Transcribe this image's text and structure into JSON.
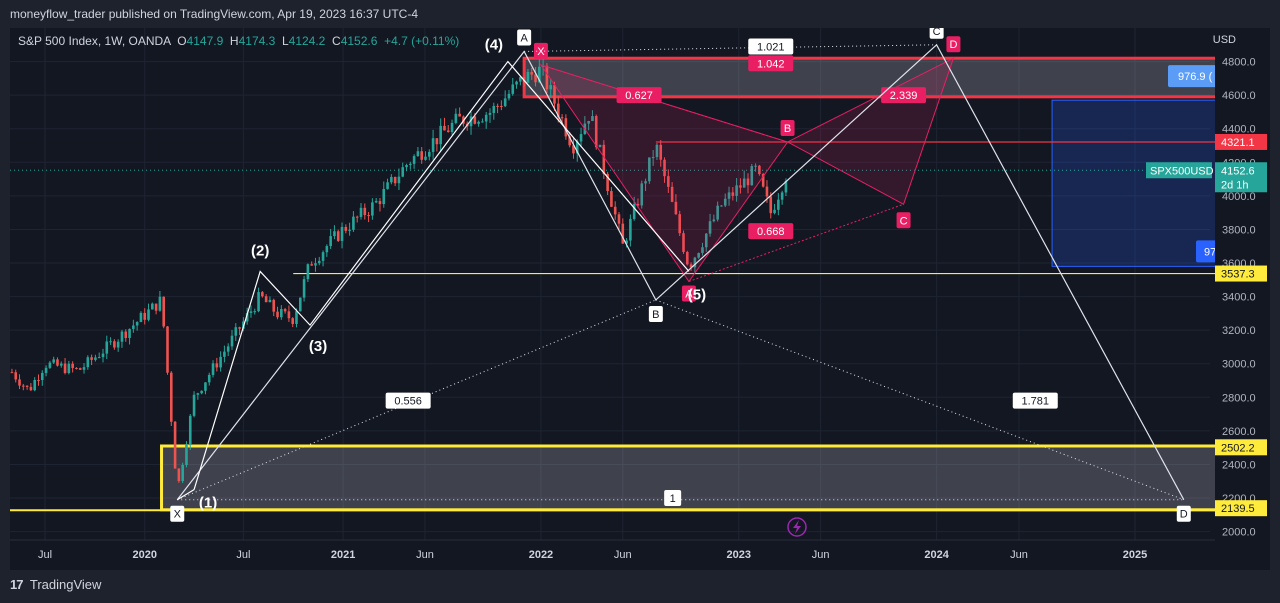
{
  "header": {
    "publish_line": "moneyflow_trader published on TradingView.com, Apr 19, 2023 16:37 UTC-4"
  },
  "legend": {
    "symbol": "S&P 500 Index, 1W, OANDA",
    "o_label": "O",
    "o_value": "4147.9",
    "h_label": "H",
    "h_value": "4174.3",
    "l_label": "L",
    "l_value": "4124.2",
    "c_label": "C",
    "c_value": "4152.6",
    "change": "+4.7 (+0.11%)"
  },
  "price_scale": {
    "currency": "USD"
  },
  "footer": {
    "brand": "TradingView",
    "logo": "17"
  },
  "colors": {
    "background": "#131722",
    "up": "#26a69a",
    "down": "#ef5350",
    "pattern": "#e91e63",
    "zone": "#ffeb3b",
    "projection": "#2962ff"
  },
  "chart_data": {
    "type": "candlestick",
    "title": "",
    "timeframe": "1W",
    "grid": true,
    "x_ticks": [
      "Jul",
      "2020",
      "Jul",
      "2021",
      "Jun",
      "2022",
      "Jun",
      "2023",
      "Jun",
      "2024",
      "Jun",
      "2025"
    ],
    "x_tick_dates": [
      "2019-07",
      "2020-01",
      "2020-07",
      "2021-01",
      "2021-06",
      "2022-01",
      "2022-06",
      "2023-01",
      "2023-06",
      "2024-01",
      "2024-06",
      "2025-01"
    ],
    "y_ticks": [
      2000,
      2200,
      2400,
      2600,
      2800,
      3000,
      3200,
      3400,
      3600,
      3800,
      4000,
      4200,
      4400,
      4600,
      4800
    ],
    "y_range": [
      1950,
      5000
    ],
    "price_path": [
      [
        "2019-05",
        2950
      ],
      [
        "2019-06",
        2840
      ],
      [
        "2019-07",
        3000
      ],
      [
        "2019-09",
        2960
      ],
      [
        "2019-11",
        3120
      ],
      [
        "2020-01",
        3290
      ],
      [
        "2020-02",
        3380
      ],
      [
        "2020-03",
        2240
      ],
      [
        "2020-04",
        2800
      ],
      [
        "2020-06",
        3100
      ],
      [
        "2020-08",
        3400
      ],
      [
        "2020-09",
        3300
      ],
      [
        "2020-10",
        3270
      ],
      [
        "2020-11",
        3600
      ],
      [
        "2021-01",
        3800
      ],
      [
        "2021-03",
        3950
      ],
      [
        "2021-05",
        4200
      ],
      [
        "2021-08",
        4450
      ],
      [
        "2021-10",
        4500
      ],
      [
        "2021-12",
        4700
      ],
      [
        "2022-01",
        4750
      ],
      [
        "2022-03",
        4300
      ],
      [
        "2022-04",
        4500
      ],
      [
        "2022-06",
        3700
      ],
      [
        "2022-08",
        4300
      ],
      [
        "2022-10",
        3580
      ],
      [
        "2022-12",
        3950
      ],
      [
        "2023-02",
        4150
      ],
      [
        "2023-03",
        3900
      ],
      [
        "2023-04",
        4152.6
      ]
    ],
    "last_price": {
      "symbol": "SPX500USD",
      "value": "4152.6",
      "countdown": "2d 1h"
    },
    "price_labels": [
      {
        "value": 4321.1,
        "text": "4321.1",
        "color": "#f23645"
      },
      {
        "value": 3537.3,
        "text": "3537.3",
        "color": "#ffeb3b"
      },
      {
        "value": 2502.2,
        "text": "2502.2",
        "color": "#ffeb3b"
      },
      {
        "value": 2139.5,
        "text": "2139.5",
        "color": "#ffeb3b"
      }
    ],
    "zones": [
      {
        "name": "supply-zone",
        "from_date": "2021-12",
        "to_date": "2025-06",
        "top": 4820,
        "bottom": 4590,
        "color": "#f23645"
      },
      {
        "name": "demand-zone",
        "from_date": "2020-02",
        "to_date": "2025-06",
        "top": 2510,
        "bottom": 2130,
        "color": "#ffeb3b"
      }
    ],
    "horizontal_lines": [
      {
        "name": "yellow-level",
        "value": 3537.3,
        "from_date": "2020-10",
        "color": "#ffeb3b"
      },
      {
        "name": "red-level",
        "value": 4321.1,
        "from_date": "2022-08",
        "color": "#f23645"
      }
    ],
    "projection_box": {
      "from_date": "2024-08",
      "top": 4570,
      "bottom": 3580,
      "label_top": "976.9 (",
      "label_bottom": "97"
    },
    "elliott_waves": [
      {
        "label": "(1)",
        "date": "2020-04",
        "price": 2250
      },
      {
        "label": "(2)",
        "date": "2020-08",
        "price": 3550
      },
      {
        "label": "(3)",
        "date": "2020-11",
        "price": 3230
      },
      {
        "label": "(4)",
        "date": "2021-11",
        "price": 4800
      },
      {
        "label": "(5)",
        "date": "2022-10",
        "price": 3550
      }
    ],
    "elliott_path": [
      [
        "2020-04",
        2250
      ],
      [
        "2020-08",
        3550
      ],
      [
        "2020-11",
        3230
      ],
      [
        "2021-11",
        4800
      ],
      [
        "2022-10",
        3550
      ]
    ],
    "white_pattern": {
      "points": [
        {
          "label": "X",
          "date": "2020-03",
          "price": 2190
        },
        {
          "label": "A",
          "date": "2021-12",
          "price": 4860
        },
        {
          "label": "B",
          "date": "2022-08",
          "price": 3380
        },
        {
          "label": "C",
          "date": "2024-01",
          "price": 4900
        },
        {
          "label": "D",
          "date": "2025-04",
          "price": 2190
        }
      ],
      "ratios": [
        {
          "text": "0.556",
          "date": "2021-05",
          "price": 2780
        },
        {
          "text": "1.021",
          "date": "2023-03",
          "price": 4890
        },
        {
          "text": "1.781",
          "date": "2024-07",
          "price": 2780
        },
        {
          "text": "1",
          "date": "2022-09",
          "price": 2200
        }
      ]
    },
    "pink_pattern": {
      "points": [
        {
          "label": "X",
          "date": "2022-01",
          "price": 4780
        },
        {
          "label": "A",
          "date": "2022-10",
          "price": 3490
        },
        {
          "label": "B",
          "date": "2023-04",
          "price": 4321
        },
        {
          "label": "C",
          "date": "2023-11",
          "price": 3950
        },
        {
          "label": "D",
          "date": "2024-02",
          "price": 4820
        }
      ],
      "ratios": [
        {
          "text": "0.627",
          "date": "2022-07",
          "price": 4600
        },
        {
          "text": "1.042",
          "date": "2023-03",
          "price": 4790
        },
        {
          "text": "2.339",
          "date": "2023-11",
          "price": 4600
        },
        {
          "text": "0.668",
          "date": "2023-03",
          "price": 3790
        }
      ]
    }
  }
}
